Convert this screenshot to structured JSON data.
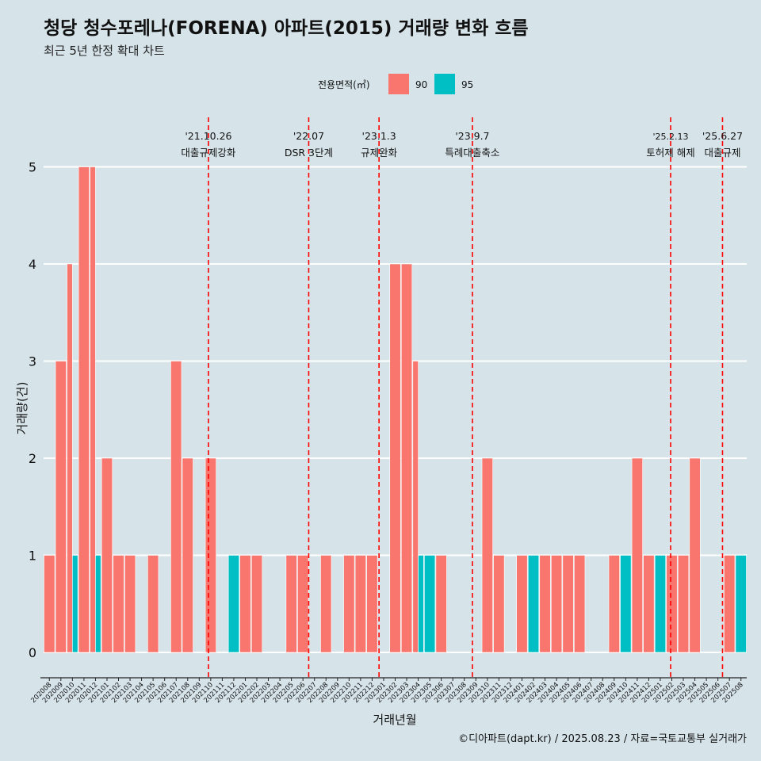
{
  "chart_data": {
    "type": "bar",
    "title": "청당 청수포레나(FORENA) 아파트(2015) 거래량 변화 흐름",
    "subtitle": "최근 5년 한정 확대 차트",
    "xlabel": "거래년월",
    "ylabel": "거래량(건)",
    "caption": "©디아파트(dapt.kr) / 2025.08.23 / 자료=국토교통부 실거래가",
    "legend_title": "전용면적(㎡)",
    "legend_position": "top",
    "ylim": [
      -0.2,
      5.5
    ],
    "yticks": [
      0,
      1,
      2,
      3,
      4,
      5
    ],
    "categories": [
      "202008",
      "202009",
      "202010",
      "202011",
      "202012",
      "202101",
      "202102",
      "202103",
      "202104",
      "202105",
      "202106",
      "202107",
      "202108",
      "202109",
      "202110",
      "202111",
      "202112",
      "202201",
      "202202",
      "202203",
      "202204",
      "202205",
      "202206",
      "202207",
      "202208",
      "202209",
      "202210",
      "202211",
      "202212",
      "202301",
      "202302",
      "202303",
      "202304",
      "202305",
      "202306",
      "202307",
      "202308",
      "202309",
      "202310",
      "202311",
      "202312",
      "202401",
      "202402",
      "202403",
      "202404",
      "202405",
      "202406",
      "202407",
      "202408",
      "202409",
      "202410",
      "202411",
      "202412",
      "202501",
      "202502",
      "202503",
      "202504",
      "202505",
      "202506",
      "202507",
      "202508"
    ],
    "series": [
      {
        "name": "90",
        "color": "#f8766d",
        "values": [
          1,
          3,
          4,
          5,
          5,
          2,
          1,
          1,
          0,
          1,
          0,
          3,
          2,
          0,
          2,
          0,
          0,
          1,
          1,
          0,
          0,
          1,
          1,
          0,
          1,
          0,
          1,
          1,
          1,
          0,
          4,
          4,
          3,
          0,
          1,
          0,
          0,
          0,
          2,
          1,
          0,
          1,
          0,
          1,
          1,
          1,
          1,
          0,
          0,
          1,
          0,
          2,
          1,
          0,
          1,
          1,
          2,
          0,
          0,
          1,
          0
        ]
      },
      {
        "name": "95",
        "color": "#00bfc4",
        "values": [
          0,
          0,
          1,
          0,
          1,
          0,
          0,
          0,
          0,
          0,
          0,
          0,
          0,
          0,
          0,
          0,
          1,
          0,
          0,
          0,
          0,
          0,
          0,
          0,
          0,
          0,
          0,
          0,
          0,
          0,
          0,
          0,
          1,
          1,
          0,
          0,
          0,
          0,
          0,
          0,
          0,
          0,
          1,
          0,
          0,
          0,
          0,
          0,
          0,
          0,
          1,
          0,
          0,
          1,
          0,
          0,
          0,
          0,
          0,
          0,
          1
        ]
      }
    ],
    "events": [
      {
        "date": "'21.10.26",
        "label": "대출규제강화",
        "x": 14.3
      },
      {
        "date": "'22.07",
        "label": "DSR 3단계",
        "x": 23.0
      },
      {
        "date": "'23.1.3",
        "label": "규제완화",
        "x": 29.1
      },
      {
        "date": "'23.9.7",
        "label": "특례대출축소",
        "x": 37.2
      },
      {
        "date": "'25.2.13",
        "label": "토허제 해제",
        "x": 54.4
      },
      {
        "date": "'25.6.27",
        "label": "대출규제",
        "x": 58.9
      }
    ]
  }
}
